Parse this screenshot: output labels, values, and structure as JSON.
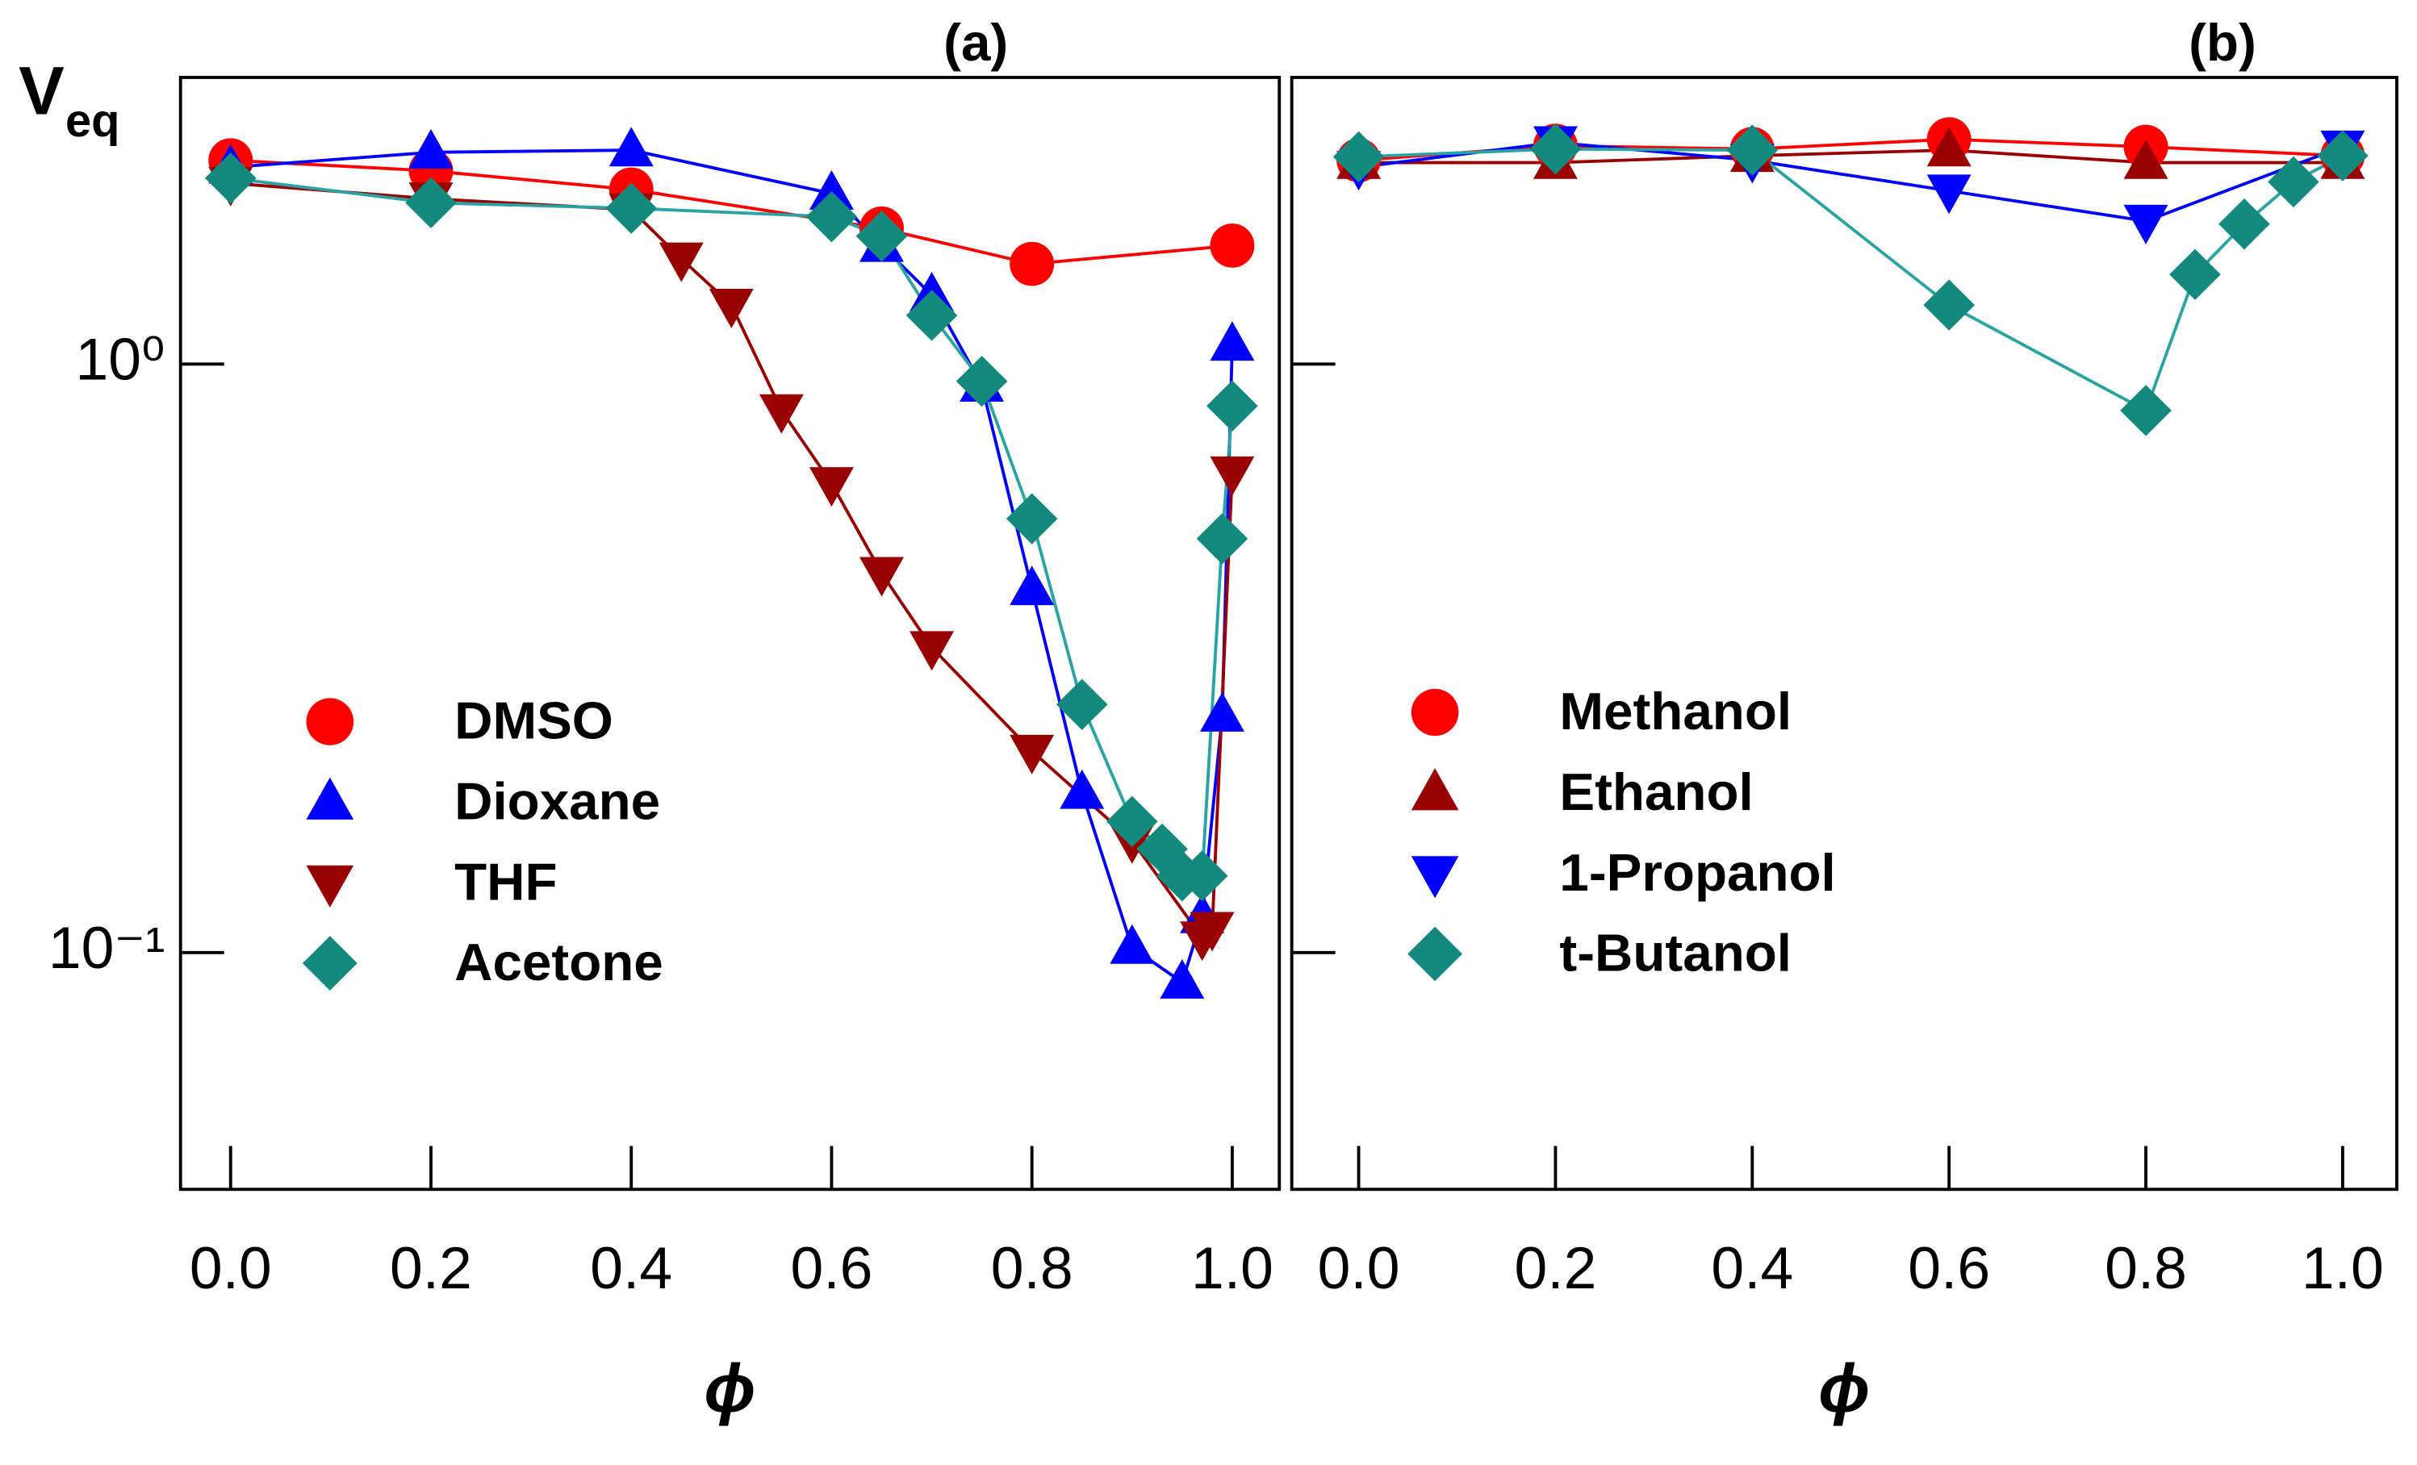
{
  "chart_data": [
    {
      "type": "line",
      "title": "(a)",
      "y_label": {
        "main": "V",
        "sub": "eq"
      },
      "x_label": "ϕ",
      "xlim": [
        -0.05,
        1.047
      ],
      "ylim": [
        0.0396,
        3.07
      ],
      "log_y": true,
      "legend": "lower left",
      "show_ytick_labels": true,
      "xticks": [
        {
          "value": 0,
          "label": "0.0"
        },
        {
          "value": 0.2,
          "label": "0.2"
        },
        {
          "value": 0.4,
          "label": "0.4"
        },
        {
          "value": 0.6,
          "label": "0.6"
        },
        {
          "value": 0.8,
          "label": "0.8"
        },
        {
          "value": 1,
          "label": "1.0"
        }
      ],
      "yticks": [
        {
          "value": 0.1,
          "label": "10⁻¹"
        },
        {
          "value": 1,
          "label": "10⁰"
        }
      ],
      "series": [
        {
          "name": "DMSO",
          "color": "#ff0000",
          "line_color": "#ff0000",
          "marker": "circle",
          "x": [
            0,
            0.2,
            0.4,
            0.65,
            0.8,
            1.0
          ],
          "values": [
            2.22,
            2.13,
            1.98,
            1.7,
            1.48,
            1.59
          ]
        },
        {
          "name": "Dioxane",
          "color": "#0000ff",
          "line_color": "#0000ff",
          "marker": "triangle-up",
          "x": [
            0,
            0.2,
            0.4,
            0.6,
            0.65,
            0.7,
            0.75,
            0.8,
            0.85,
            0.9,
            0.95,
            0.97,
            0.99,
            1.0
          ],
          "values": [
            2.16,
            2.29,
            2.31,
            1.95,
            1.59,
            1.31,
            0.92,
            0.415,
            0.187,
            0.102,
            0.089,
            0.115,
            0.253,
            1.08
          ]
        },
        {
          "name": "THF",
          "color": "#990000",
          "line_color": "#990000",
          "marker": "triangle-down",
          "x": [
            0,
            0.2,
            0.4,
            0.45,
            0.5,
            0.55,
            0.6,
            0.65,
            0.7,
            0.8,
            0.9,
            0.97,
            0.98,
            1.0
          ],
          "values": [
            2.03,
            1.91,
            1.83,
            1.51,
            1.26,
            0.834,
            0.627,
            0.441,
            0.33,
            0.22,
            0.155,
            0.106,
            0.11,
            0.654
          ]
        },
        {
          "name": "Acetone",
          "color": "#14897d",
          "line_color": "#2aa3a3",
          "marker": "diamond",
          "x": [
            0,
            0.2,
            0.4,
            0.6,
            0.65,
            0.7,
            0.75,
            0.8,
            0.85,
            0.9,
            0.93,
            0.95,
            0.97,
            0.99,
            1.0
          ],
          "values": [
            2.07,
            1.88,
            1.84,
            1.78,
            1.65,
            1.21,
            0.935,
            0.546,
            0.264,
            0.167,
            0.15,
            0.135,
            0.135,
            0.505,
            0.849
          ]
        }
      ]
    },
    {
      "type": "line",
      "title": "(b)",
      "x_label": "ϕ",
      "xlim": [
        -0.068,
        1.055
      ],
      "ylim": [
        0.0396,
        3.07
      ],
      "log_y": true,
      "legend": "center left",
      "show_ytick_labels": false,
      "xticks": [
        {
          "value": 0,
          "label": "0.0"
        },
        {
          "value": 0.2,
          "label": "0.2"
        },
        {
          "value": 0.4,
          "label": "0.4"
        },
        {
          "value": 0.6,
          "label": "0.6"
        },
        {
          "value": 0.8,
          "label": "0.8"
        },
        {
          "value": 1,
          "label": "1.0"
        }
      ],
      "yticks": [
        0.1,
        1
      ],
      "series": [
        {
          "name": "Methanol",
          "color": "#ff0000",
          "line_color": "#ff0000",
          "marker": "circle",
          "x": [
            0,
            0.2,
            0.4,
            0.6,
            0.8,
            1.0
          ],
          "values": [
            2.22,
            2.35,
            2.32,
            2.41,
            2.34,
            2.26
          ]
        },
        {
          "name": "Ethanol",
          "color": "#990000",
          "line_color": "#990000",
          "marker": "triangle-up",
          "x": [
            0,
            0.2,
            0.4,
            0.6,
            0.8,
            1.0
          ],
          "values": [
            2.2,
            2.2,
            2.26,
            2.31,
            2.2,
            2.2
          ]
        },
        {
          "name": "1-Propanol",
          "color": "#0000ff",
          "line_color": "#0000ff",
          "marker": "triangle-down",
          "x": [
            0,
            0.2,
            0.4,
            0.6,
            0.8,
            1.0
          ],
          "values": [
            2.16,
            2.38,
            2.22,
            1.97,
            1.75,
            2.34
          ]
        },
        {
          "name": "t-Butanol",
          "color": "#14897d",
          "line_color": "#2aa3a3",
          "marker": "diamond",
          "x": [
            0,
            0.2,
            0.4,
            0.6,
            0.8,
            0.85,
            0.9,
            0.95,
            1.0
          ],
          "values": [
            2.25,
            2.32,
            2.31,
            1.26,
            0.834,
            1.42,
            1.73,
            2.04,
            2.26
          ]
        }
      ]
    }
  ]
}
